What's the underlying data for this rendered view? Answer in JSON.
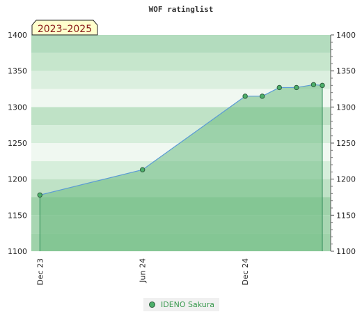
{
  "chart_data": {
    "type": "area",
    "title": "WOF ratinglist",
    "badge": "2023–2025",
    "ylim": [
      1100,
      1400
    ],
    "yticks": [
      1100,
      1150,
      1200,
      1250,
      1300,
      1350,
      1400
    ],
    "ytick_labels": [
      "1100",
      "1150",
      "1200",
      "1250",
      "1300",
      "1350",
      "1400"
    ],
    "xticks": [
      {
        "label": "Dec 23",
        "month": 0
      },
      {
        "label": "Jun 24",
        "month": 6
      },
      {
        "label": "Dec 24",
        "month": 12
      }
    ],
    "xlim_months": [
      -0.5,
      17
    ],
    "series": [
      {
        "name": "IDENO Sakura",
        "points": [
          {
            "month": 0,
            "rating": 1178
          },
          {
            "month": 6,
            "rating": 1213
          },
          {
            "month": 12,
            "rating": 1315
          },
          {
            "month": 13,
            "rating": 1315
          },
          {
            "month": 14,
            "rating": 1327
          },
          {
            "month": 15,
            "rating": 1327
          },
          {
            "month": 16,
            "rating": 1331
          },
          {
            "month": 17,
            "rating": 1330
          }
        ]
      }
    ],
    "colors": {
      "line": "#5b9bd5",
      "fill": "#6dbb82",
      "marker": "#4caf6a",
      "marker_edge": "#2e5e3e",
      "badge_bg": "#ffffcc"
    },
    "legend_position": "bottom-center"
  }
}
